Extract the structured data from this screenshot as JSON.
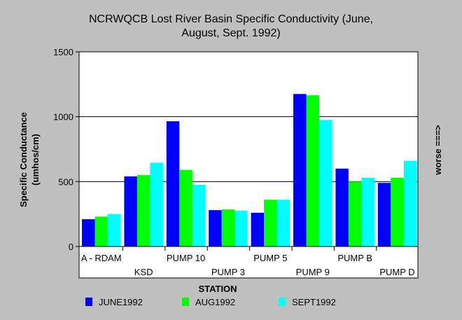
{
  "chart_data": {
    "type": "bar",
    "title_lines": [
      "NCRWQCB Lost River Basin Specific Conductivity (June,",
      "August, Sept. 1992)"
    ],
    "xlabel": "STATION",
    "ylabel_lines": [
      "Specific Conductance",
      "(umhos/cm)"
    ],
    "right_label": "worse ===>",
    "categories": [
      "A - RDAM",
      "KSD",
      "PUMP 10",
      "PUMP 3",
      "PUMP 5",
      "PUMP 9",
      "PUMP B",
      "PUMP D"
    ],
    "series": [
      {
        "name": "JUNE1992",
        "color": "#0000ff",
        "values": [
          210,
          540,
          965,
          280,
          260,
          1175,
          600,
          490
        ]
      },
      {
        "name": "AUG1992",
        "color": "#00ff00",
        "values": [
          230,
          550,
          590,
          285,
          360,
          1165,
          500,
          530
        ]
      },
      {
        "name": "SEPT1992",
        "color": "#00ffff",
        "values": [
          250,
          645,
          475,
          275,
          360,
          975,
          530,
          660
        ]
      }
    ],
    "ylim": [
      0,
      1500
    ],
    "yticks": [
      0,
      500,
      1000,
      1500
    ],
    "grid": true,
    "legend_position": "bottom",
    "plot_background": "#ffffff"
  }
}
